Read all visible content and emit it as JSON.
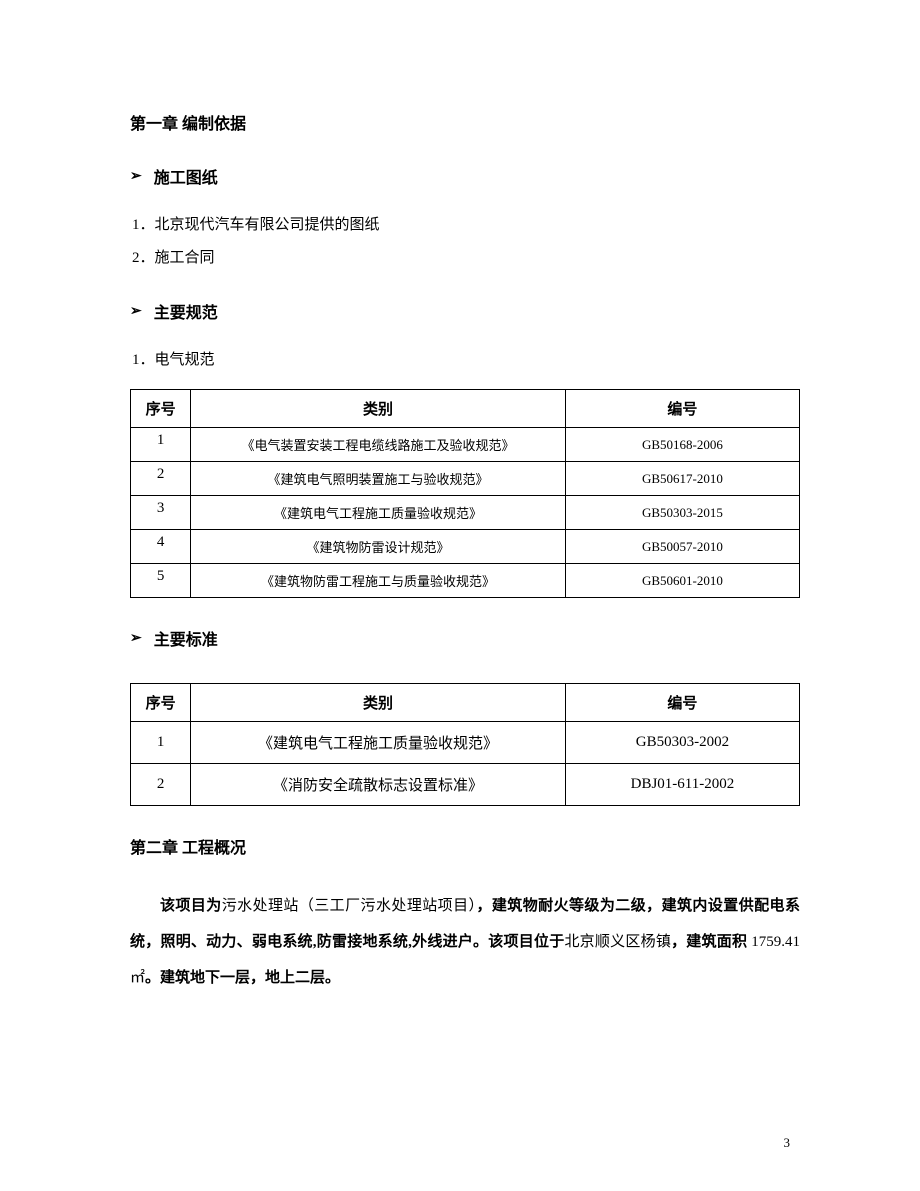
{
  "chapter1": {
    "title": "第一章 编制依据"
  },
  "section1": {
    "title": "施工图纸",
    "items": [
      "1．北京现代汽车有限公司提供的图纸",
      "2．施工合同"
    ]
  },
  "section2": {
    "title": "主要规范",
    "subheading": "1．电气规范"
  },
  "table1": {
    "headers": {
      "seq": "序号",
      "category": "类别",
      "code": "编号"
    },
    "rows": [
      {
        "seq": "1",
        "category": "《电气装置安装工程电缆线路施工及验收规范》",
        "code": "GB50168-2006"
      },
      {
        "seq": "2",
        "category": "《建筑电气照明装置施工与验收规范》",
        "code": "GB50617-2010"
      },
      {
        "seq": "3",
        "category": "《建筑电气工程施工质量验收规范》",
        "code": "GB50303-2015"
      },
      {
        "seq": "4",
        "category": "《建筑物防雷设计规范》",
        "code": "GB50057-2010"
      },
      {
        "seq": "5",
        "category": "《建筑物防雷工程施工与质量验收规范》",
        "code": "GB50601-2010"
      }
    ]
  },
  "section3": {
    "title": "主要标准"
  },
  "table2": {
    "headers": {
      "seq": "序号",
      "category": "类别",
      "code": "编号"
    },
    "rows": [
      {
        "seq": "1",
        "category": "《建筑电气工程施工质量验收规范》",
        "code": "GB50303-2002"
      },
      {
        "seq": "2",
        "category": "《消防安全疏散标志设置标准》",
        "code": "DBJ01-611-2002"
      }
    ]
  },
  "chapter2": {
    "title": "第二章 工程概况"
  },
  "paragraph": {
    "p1": "该项目为",
    "p2": "污水处理站（三工厂污水处理站项目）",
    "p3": "，建筑物耐火等级为二级，建筑内设置供配电系统，照明、动力、弱电系统,防雷接地系统,外线进户。该项目位于",
    "p4": "北京顺义区杨镇",
    "p5": "，建筑面积",
    "p6": " 1759.41 ㎡",
    "p7": "。建筑地下一层，地上二层。"
  },
  "pageNumber": "3",
  "arrowGlyph": "➢"
}
